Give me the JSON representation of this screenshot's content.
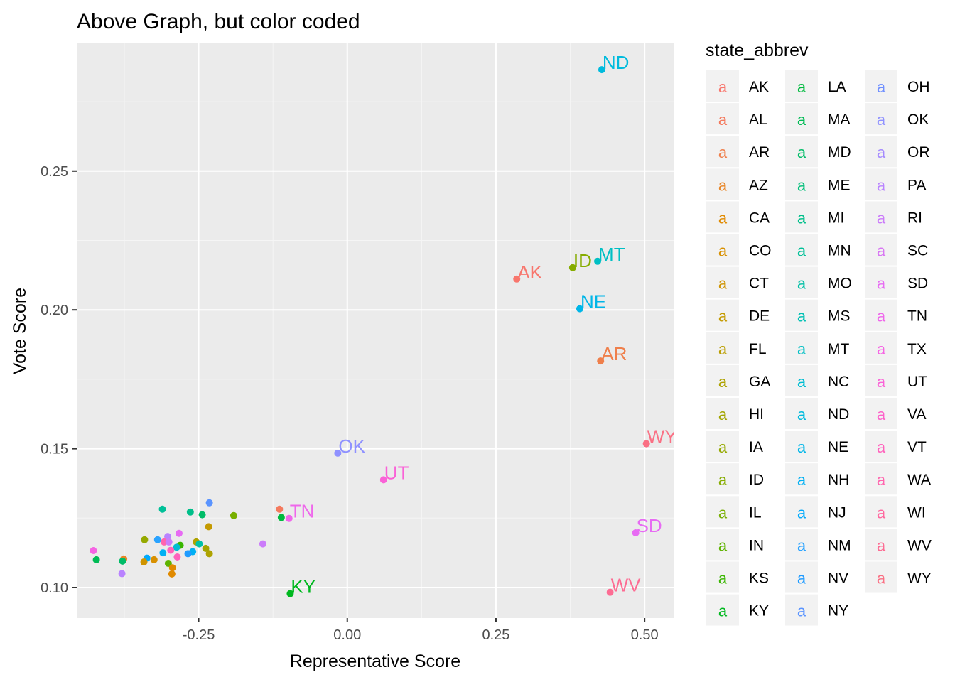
{
  "chart_data": {
    "type": "scatter",
    "title": "Above Graph, but color coded",
    "xlabel": "Representative Score",
    "ylabel": "Vote Score",
    "xlim": [
      -0.455,
      0.55
    ],
    "ylim": [
      0.089,
      0.296
    ],
    "x_ticks": [
      -0.25,
      0.0,
      0.25,
      0.5
    ],
    "x_tick_labels": [
      "-0.25",
      "0.00",
      "0.25",
      "0.50"
    ],
    "y_ticks": [
      0.1,
      0.15,
      0.2,
      0.25
    ],
    "y_tick_labels": [
      "0.10",
      "0.15",
      "0.20",
      "0.25"
    ],
    "grid": true,
    "legend": {
      "title": "state_abbrev",
      "placement": "right",
      "glyph": "a",
      "entries": [
        {
          "label": "AK",
          "color": "#F8766D"
        },
        {
          "label": "AL",
          "color": "#F47A5E"
        },
        {
          "label": "AR",
          "color": "#EF7F4B"
        },
        {
          "label": "AZ",
          "color": "#E88526"
        },
        {
          "label": "CA",
          "color": "#E08A00"
        },
        {
          "label": "CO",
          "color": "#D89000"
        },
        {
          "label": "CT",
          "color": "#CF9400"
        },
        {
          "label": "DE",
          "color": "#C49A00"
        },
        {
          "label": "FL",
          "color": "#BA9E00"
        },
        {
          "label": "GA",
          "color": "#AEA200"
        },
        {
          "label": "HI",
          "color": "#A3A500"
        },
        {
          "label": "IA",
          "color": "#95A900"
        },
        {
          "label": "ID",
          "color": "#86AC00"
        },
        {
          "label": "IL",
          "color": "#77AF00"
        },
        {
          "label": "IN",
          "color": "#5EB300"
        },
        {
          "label": "KS",
          "color": "#39B600"
        },
        {
          "label": "KY",
          "color": "#00B81F"
        },
        {
          "label": "LA",
          "color": "#00BA3F"
        },
        {
          "label": "MA",
          "color": "#00BB55"
        },
        {
          "label": "MD",
          "color": "#00BC67"
        },
        {
          "label": "ME",
          "color": "#00BE79"
        },
        {
          "label": "MI",
          "color": "#00BF8A"
        },
        {
          "label": "MN",
          "color": "#00C098"
        },
        {
          "label": "MO",
          "color": "#00C0A6"
        },
        {
          "label": "MS",
          "color": "#00C0B4"
        },
        {
          "label": "MT",
          "color": "#00BFC4"
        },
        {
          "label": "NC",
          "color": "#00BDD2"
        },
        {
          "label": "ND",
          "color": "#00BBDD"
        },
        {
          "label": "NE",
          "color": "#00B6E8"
        },
        {
          "label": "NH",
          "color": "#00B0F3"
        },
        {
          "label": "NJ",
          "color": "#00AAFC"
        },
        {
          "label": "NM",
          "color": "#2AA3FF"
        },
        {
          "label": "NV",
          "color": "#1F9BFF"
        },
        {
          "label": "NY",
          "color": "#5A94FF"
        },
        {
          "label": "OH",
          "color": "#6F8FFF"
        },
        {
          "label": "OK",
          "color": "#8F91FF"
        },
        {
          "label": "OR",
          "color": "#A58AFF"
        },
        {
          "label": "PA",
          "color": "#B983FF"
        },
        {
          "label": "RI",
          "color": "#CB7CFA"
        },
        {
          "label": "SC",
          "color": "#D876F3"
        },
        {
          "label": "SD",
          "color": "#E76BF3"
        },
        {
          "label": "TN",
          "color": "#EF67EB"
        },
        {
          "label": "TX",
          "color": "#F564E3"
        },
        {
          "label": "UT",
          "color": "#FA62D7"
        },
        {
          "label": "VA",
          "color": "#FD61C9"
        },
        {
          "label": "VT",
          "color": "#FF62BC"
        },
        {
          "label": "WA",
          "color": "#FF65AE"
        },
        {
          "label": "WI",
          "color": "#FF689F"
        },
        {
          "label": "WV",
          "color": "#FD6C93"
        },
        {
          "label": "WY",
          "color": "#FA7084"
        }
      ]
    },
    "labeled_points": [
      {
        "label": "ND",
        "x": 0.428,
        "y": 0.2865,
        "color": "#00BBDD"
      },
      {
        "label": "MT",
        "x": 0.421,
        "y": 0.2175,
        "color": "#00BFC4"
      },
      {
        "label": "ID",
        "x": 0.379,
        "y": 0.2152,
        "color": "#86AC00"
      },
      {
        "label": "AK",
        "x": 0.285,
        "y": 0.2111,
        "color": "#F8766D"
      },
      {
        "label": "NE",
        "x": 0.391,
        "y": 0.2004,
        "color": "#00B6E8"
      },
      {
        "label": "AR",
        "x": 0.426,
        "y": 0.1816,
        "color": "#EF7F4B"
      },
      {
        "label": "WY",
        "x": 0.503,
        "y": 0.1518,
        "color": "#FA7084"
      },
      {
        "label": "OK",
        "x": -0.016,
        "y": 0.1484,
        "color": "#8F91FF"
      },
      {
        "label": "UT",
        "x": 0.061,
        "y": 0.1388,
        "color": "#FA62D7"
      },
      {
        "label": "TN",
        "x": -0.098,
        "y": 0.1249,
        "color": "#EF67EB"
      },
      {
        "label": "SD",
        "x": 0.485,
        "y": 0.1197,
        "color": "#E76BF3"
      },
      {
        "label": "KY",
        "x": -0.096,
        "y": 0.0978,
        "color": "#00B81F"
      },
      {
        "label": "WV",
        "x": 0.442,
        "y": 0.0983,
        "color": "#FD6C93"
      }
    ],
    "unlabeled_points": [
      {
        "x": -0.232,
        "y": 0.1305,
        "color": "#5A94FF"
      },
      {
        "x": -0.311,
        "y": 0.1282,
        "color": "#00C098"
      },
      {
        "x": -0.264,
        "y": 0.1272,
        "color": "#00BF8A"
      },
      {
        "x": -0.244,
        "y": 0.1262,
        "color": "#00BC67"
      },
      {
        "x": -0.191,
        "y": 0.1259,
        "color": "#77AF00"
      },
      {
        "x": -0.114,
        "y": 0.1282,
        "color": "#F47A5E"
      },
      {
        "x": -0.111,
        "y": 0.1252,
        "color": "#00BA3F"
      },
      {
        "x": -0.233,
        "y": 0.1219,
        "color": "#C49A00"
      },
      {
        "x": -0.283,
        "y": 0.1195,
        "color": "#E76BF3"
      },
      {
        "x": -0.302,
        "y": 0.1184,
        "color": "#B983FF"
      },
      {
        "x": -0.341,
        "y": 0.1172,
        "color": "#95A900"
      },
      {
        "x": -0.319,
        "y": 0.1172,
        "color": "#2AA3FF"
      },
      {
        "x": -0.308,
        "y": 0.1164,
        "color": "#FF65AE"
      },
      {
        "x": -0.3,
        "y": 0.1164,
        "color": "#CB7CFA"
      },
      {
        "x": -0.254,
        "y": 0.1164,
        "color": "#AEA200"
      },
      {
        "x": -0.249,
        "y": 0.1157,
        "color": "#00C0A6"
      },
      {
        "x": -0.142,
        "y": 0.1157,
        "color": "#CB7CFA"
      },
      {
        "x": -0.281,
        "y": 0.1152,
        "color": "#39B600"
      },
      {
        "x": -0.287,
        "y": 0.1145,
        "color": "#00BDD2"
      },
      {
        "x": -0.297,
        "y": 0.1134,
        "color": "#FF62BC"
      },
      {
        "x": -0.238,
        "y": 0.1141,
        "color": "#A3A500"
      },
      {
        "x": -0.31,
        "y": 0.1125,
        "color": "#00B0F3"
      },
      {
        "x": -0.26,
        "y": 0.1129,
        "color": "#00B0F3"
      },
      {
        "x": -0.268,
        "y": 0.1122,
        "color": "#1F9BFF"
      },
      {
        "x": -0.232,
        "y": 0.1122,
        "color": "#AEA200"
      },
      {
        "x": -0.427,
        "y": 0.1133,
        "color": "#F564E3"
      },
      {
        "x": -0.286,
        "y": 0.111,
        "color": "#FF62BC"
      },
      {
        "x": -0.337,
        "y": 0.1106,
        "color": "#00AAFC"
      },
      {
        "x": -0.376,
        "y": 0.1103,
        "color": "#E88526"
      },
      {
        "x": -0.378,
        "y": 0.1095,
        "color": "#00BC67"
      },
      {
        "x": -0.422,
        "y": 0.11,
        "color": "#00BB55"
      },
      {
        "x": -0.325,
        "y": 0.11,
        "color": "#D89000"
      },
      {
        "x": -0.342,
        "y": 0.1092,
        "color": "#CF9400"
      },
      {
        "x": -0.301,
        "y": 0.1087,
        "color": "#5EB300"
      },
      {
        "x": -0.294,
        "y": 0.1071,
        "color": "#E08A00"
      },
      {
        "x": -0.379,
        "y": 0.105,
        "color": "#B983FF"
      },
      {
        "x": -0.295,
        "y": 0.1049,
        "color": "#E08A00"
      }
    ]
  }
}
